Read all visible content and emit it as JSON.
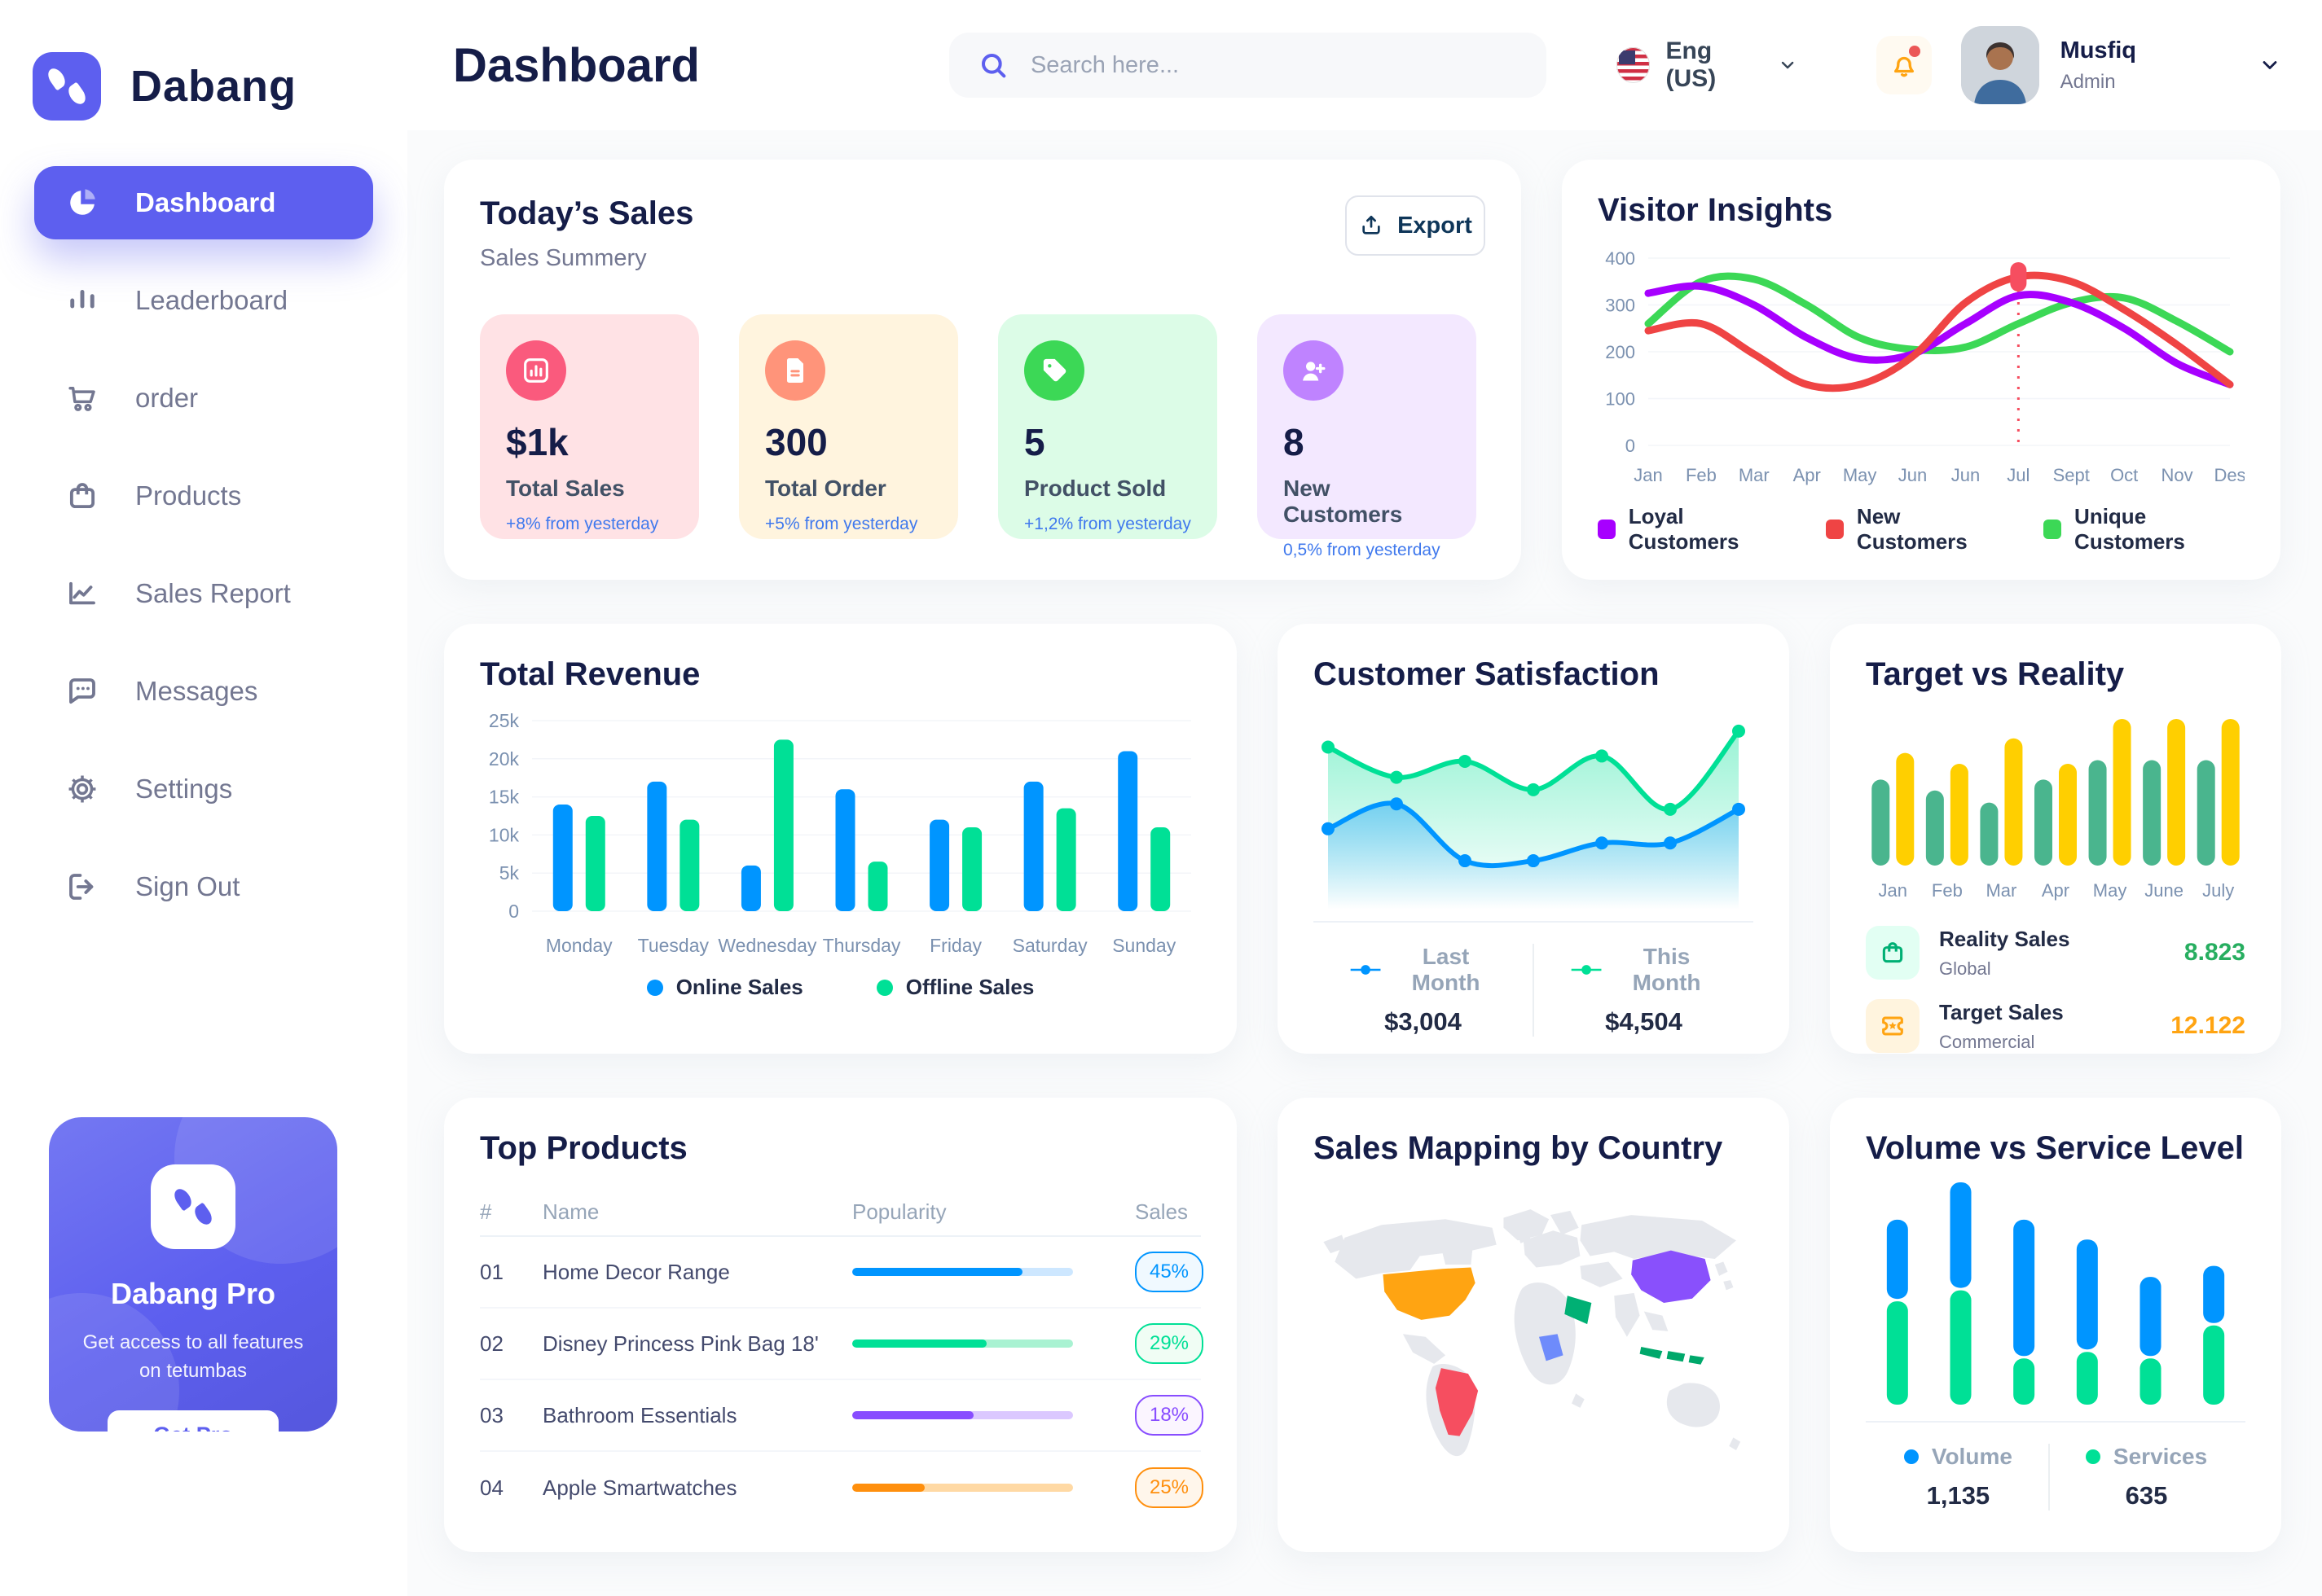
{
  "brand": {
    "name": "Dabang"
  },
  "sidebar": {
    "items": [
      {
        "label": "Dashboard",
        "icon": "pie-chart-icon",
        "active": true
      },
      {
        "label": "Leaderboard",
        "icon": "bar-chart-icon",
        "active": false
      },
      {
        "label": "order",
        "icon": "cart-icon",
        "active": false
      },
      {
        "label": "Products",
        "icon": "bag-icon",
        "active": false
      },
      {
        "label": "Sales Report",
        "icon": "line-chart-icon",
        "active": false
      },
      {
        "label": "Messages",
        "icon": "message-icon",
        "active": false
      },
      {
        "label": "Settings",
        "icon": "gear-icon",
        "active": false
      },
      {
        "label": "Sign Out",
        "icon": "sign-out-icon",
        "active": false
      }
    ],
    "promo": {
      "title": "Dabang Pro",
      "description": "Get access to all features on tetumbas",
      "cta": "Get Pro"
    }
  },
  "header": {
    "title": "Dashboard",
    "search_placeholder": "Search here...",
    "language": "Eng (US)",
    "user": {
      "name": "Musfiq",
      "role": "Admin"
    }
  },
  "today_sales": {
    "title": "Today’s Sales",
    "subtitle": "Sales Summery",
    "export_label": "Export",
    "cards": [
      {
        "value": "$1k",
        "label": "Total Sales",
        "trend": "+8% from yesterday",
        "icon": "chart-bar-icon",
        "bg": "#FFE2E5",
        "icon_bg": "#FA5A7D"
      },
      {
        "value": "300",
        "label": "Total Order",
        "trend": "+5% from yesterday",
        "icon": "order-file-icon",
        "bg": "#FFF4DE",
        "icon_bg": "#FF947A"
      },
      {
        "value": "5",
        "label": "Product Sold",
        "trend": "+1,2% from yesterday",
        "icon": "tag-icon",
        "bg": "#DCFCE7",
        "icon_bg": "#3CD856"
      },
      {
        "value": "8",
        "label": "New Customers",
        "trend": "0,5% from yesterday",
        "icon": "user-plus-icon",
        "bg": "#F3E8FF",
        "icon_bg": "#BF83FF"
      }
    ]
  },
  "visitor_insights": {
    "title": "Visitor Insights",
    "chart_data": {
      "type": "line",
      "x": [
        "Jan",
        "Feb",
        "Mar",
        "Apr",
        "May",
        "Jun",
        "Jun",
        "Jul",
        "Sept",
        "Oct",
        "Nov",
        "Des"
      ],
      "ylim": [
        0,
        400
      ],
      "yticks": [
        0,
        100,
        200,
        300,
        400
      ],
      "series": [
        {
          "name": "Loyal Customers",
          "color": "#A700FF",
          "values": [
            325,
            340,
            300,
            230,
            185,
            195,
            260,
            320,
            305,
            250,
            175,
            130
          ]
        },
        {
          "name": "New Customers",
          "color": "#EF4444",
          "values": [
            245,
            260,
            195,
            130,
            130,
            190,
            305,
            360,
            350,
            290,
            215,
            130
          ]
        },
        {
          "name": "Unique Customers",
          "color": "#3CD856",
          "values": [
            260,
            350,
            355,
            300,
            230,
            205,
            210,
            260,
            305,
            315,
            265,
            200
          ]
        }
      ],
      "marker": {
        "series": "New Customers",
        "index": 7
      }
    }
  },
  "total_revenue": {
    "title": "Total Revenue",
    "chart_data": {
      "type": "bar",
      "categories": [
        "Monday",
        "Tuesday",
        "Wednesday",
        "Thursday",
        "Friday",
        "Saturday",
        "Sunday"
      ],
      "series": [
        {
          "name": "Online Sales",
          "color": "#0095FF",
          "values": [
            14,
            17,
            6,
            16,
            12,
            17,
            21
          ]
        },
        {
          "name": "Offline Sales",
          "color": "#00E096",
          "values": [
            12.5,
            12,
            22.5,
            6.5,
            11,
            13.5,
            11
          ]
        }
      ],
      "ylim": [
        0,
        25
      ],
      "yticks": [
        "0",
        "5k",
        "10k",
        "15k",
        "20k",
        "25k"
      ]
    }
  },
  "customer_satisfaction": {
    "title": "Customer Satisfaction",
    "chart_data": {
      "type": "area",
      "ylim": [
        0,
        100
      ],
      "series": [
        {
          "name": "Last Month",
          "color": "#0095FF",
          "total": "$3,004",
          "values": [
            40,
            54,
            22,
            22,
            32,
            32,
            51
          ]
        },
        {
          "name": "This Month",
          "color": "#00E096",
          "total": "$4,504",
          "values": [
            86,
            69,
            78,
            62,
            81,
            51,
            95
          ]
        }
      ]
    }
  },
  "target_vs_reality": {
    "title": "Target vs Reality",
    "chart_data": {
      "type": "bar",
      "categories": [
        "Jan",
        "Feb",
        "Mar",
        "Apr",
        "May",
        "June",
        "July"
      ],
      "ylim": [
        0,
        12.5
      ],
      "series": [
        {
          "name": "Reality Sales",
          "color": "#4AB58E",
          "values": [
            7.1,
            6.2,
            5.2,
            7.1,
            8.7,
            8.7,
            8.7
          ]
        },
        {
          "name": "Target Sales",
          "color": "#FFCF00",
          "values": [
            9.3,
            8.4,
            10.5,
            8.4,
            12.1,
            12.1,
            12.1
          ]
        }
      ]
    },
    "legend": [
      {
        "name": "Reality Sales",
        "sub": "Global",
        "value": "8.823",
        "value_color": "#27AE60",
        "icon": "bag-icon",
        "icon_bg": "#E2FFF3",
        "icon_color": "#00B074"
      },
      {
        "name": "Target Sales",
        "sub": "Commercial",
        "value": "12.122",
        "value_color": "#FFA412",
        "icon": "ticket-icon",
        "icon_bg": "#FFF4DE",
        "icon_color": "#FFA412"
      }
    ]
  },
  "top_products": {
    "title": "Top Products",
    "columns": [
      "#",
      "Name",
      "Popularity",
      "Sales"
    ],
    "rows": [
      {
        "id": "01",
        "name": "Home Decor Range",
        "popularity": 77,
        "sales": "45%",
        "color": "#0095FF",
        "track": "#CDE7FF",
        "badge_bg": "#F0F9FF"
      },
      {
        "id": "02",
        "name": "Disney Princess Pink Bag 18'",
        "popularity": 61,
        "sales": "29%",
        "color": "#00E096",
        "track": "#A9F2D2",
        "badge_bg": "#F0FDF4"
      },
      {
        "id": "03",
        "name": "Bathroom Essentials",
        "popularity": 55,
        "sales": "18%",
        "color": "#884DFF",
        "track": "#DBC8FF",
        "badge_bg": "#FBF5FF"
      },
      {
        "id": "04",
        "name": "Apple Smartwatches",
        "popularity": 33,
        "sales": "25%",
        "color": "#FF8F0D",
        "track": "#FFD9A4",
        "badge_bg": "#FFF6EB"
      }
    ]
  },
  "sales_mapping": {
    "title": "Sales Mapping by Country",
    "countries": [
      {
        "name": "United States",
        "color": "#FFA412"
      },
      {
        "name": "Brazil",
        "color": "#F64E60"
      },
      {
        "name": "DR Congo",
        "color": "#6E8BFB"
      },
      {
        "name": "Saudi Arabia",
        "color": "#00B074"
      },
      {
        "name": "China",
        "color": "#8950FC"
      },
      {
        "name": "Indonesia",
        "color": "#00A86B"
      }
    ]
  },
  "volume_service": {
    "title": "Volume vs Service Level",
    "chart_data": {
      "type": "stacked-bar",
      "series": [
        {
          "name": "Volume",
          "color": "#0095FF",
          "total": "1,135",
          "values": [
            36,
            48,
            62,
            50,
            36,
            26
          ]
        },
        {
          "name": "Services",
          "color": "#00E096",
          "total": "635",
          "values": [
            47,
            52,
            21,
            24,
            21,
            36
          ]
        }
      ]
    }
  }
}
